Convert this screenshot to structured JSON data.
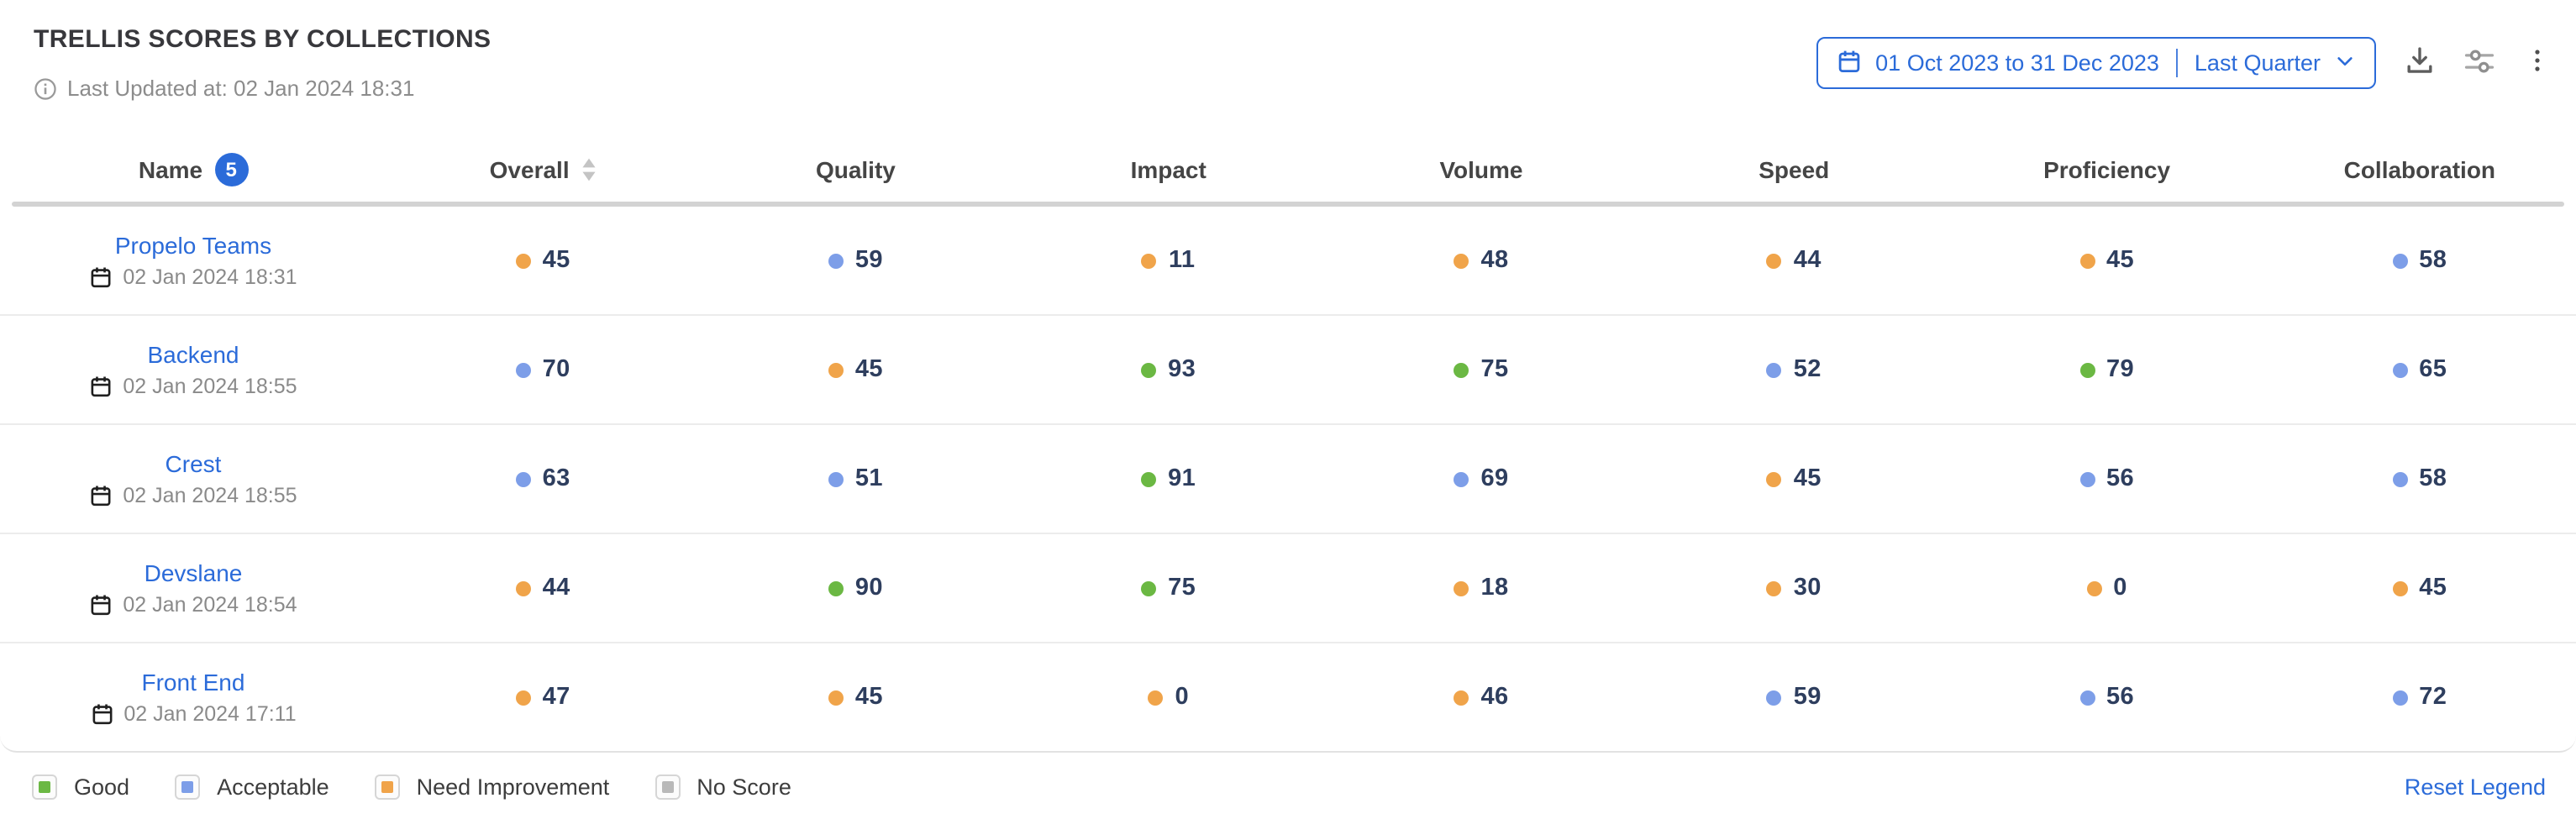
{
  "widget": {
    "title": "TRELLIS SCORES BY COLLECTIONS",
    "last_updated": "Last Updated at: 02 Jan 2024 18:31"
  },
  "toolbar": {
    "date_range": "01 Oct 2023 to 31 Dec 2023",
    "date_preset": "Last Quarter"
  },
  "table": {
    "columns": [
      "Name",
      "Overall",
      "Quality",
      "Impact",
      "Volume",
      "Speed",
      "Proficiency",
      "Collaboration"
    ],
    "row_count_badge": "5",
    "rows": [
      {
        "name": "Propelo Teams",
        "updated": "02 Jan 2024 18:31",
        "scores": [
          {
            "value": 45,
            "status": "need_improvement"
          },
          {
            "value": 59,
            "status": "acceptable"
          },
          {
            "value": 11,
            "status": "need_improvement"
          },
          {
            "value": 48,
            "status": "need_improvement"
          },
          {
            "value": 44,
            "status": "need_improvement"
          },
          {
            "value": 45,
            "status": "need_improvement"
          },
          {
            "value": 58,
            "status": "acceptable"
          }
        ]
      },
      {
        "name": "Backend",
        "updated": "02 Jan 2024 18:55",
        "scores": [
          {
            "value": 70,
            "status": "acceptable"
          },
          {
            "value": 45,
            "status": "need_improvement"
          },
          {
            "value": 93,
            "status": "good"
          },
          {
            "value": 75,
            "status": "good"
          },
          {
            "value": 52,
            "status": "acceptable"
          },
          {
            "value": 79,
            "status": "good"
          },
          {
            "value": 65,
            "status": "acceptable"
          }
        ]
      },
      {
        "name": "Crest",
        "updated": "02 Jan 2024 18:55",
        "scores": [
          {
            "value": 63,
            "status": "acceptable"
          },
          {
            "value": 51,
            "status": "acceptable"
          },
          {
            "value": 91,
            "status": "good"
          },
          {
            "value": 69,
            "status": "acceptable"
          },
          {
            "value": 45,
            "status": "need_improvement"
          },
          {
            "value": 56,
            "status": "acceptable"
          },
          {
            "value": 58,
            "status": "acceptable"
          }
        ]
      },
      {
        "name": "Devslane",
        "updated": "02 Jan 2024 18:54",
        "scores": [
          {
            "value": 44,
            "status": "need_improvement"
          },
          {
            "value": 90,
            "status": "good"
          },
          {
            "value": 75,
            "status": "good"
          },
          {
            "value": 18,
            "status": "need_improvement"
          },
          {
            "value": 30,
            "status": "need_improvement"
          },
          {
            "value": 0,
            "status": "need_improvement"
          },
          {
            "value": 45,
            "status": "need_improvement"
          }
        ]
      },
      {
        "name": "Front End",
        "updated": "02 Jan 2024 17:11",
        "scores": [
          {
            "value": 47,
            "status": "need_improvement"
          },
          {
            "value": 45,
            "status": "need_improvement"
          },
          {
            "value": 0,
            "status": "need_improvement"
          },
          {
            "value": 46,
            "status": "need_improvement"
          },
          {
            "value": 59,
            "status": "acceptable"
          },
          {
            "value": 56,
            "status": "acceptable"
          },
          {
            "value": 72,
            "status": "acceptable"
          }
        ]
      }
    ]
  },
  "legend": {
    "items": [
      {
        "label": "Good",
        "status": "good"
      },
      {
        "label": "Acceptable",
        "status": "acceptable"
      },
      {
        "label": "Need Improvement",
        "status": "need_improvement"
      },
      {
        "label": "No Score",
        "status": "no_score"
      }
    ],
    "reset_label": "Reset Legend"
  },
  "colors": {
    "good": "#6bb843",
    "acceptable": "#7d9ee8",
    "need_improvement": "#f0a44a",
    "no_score": "#b9b9b9",
    "accent_blue": "#2b6bd9"
  }
}
